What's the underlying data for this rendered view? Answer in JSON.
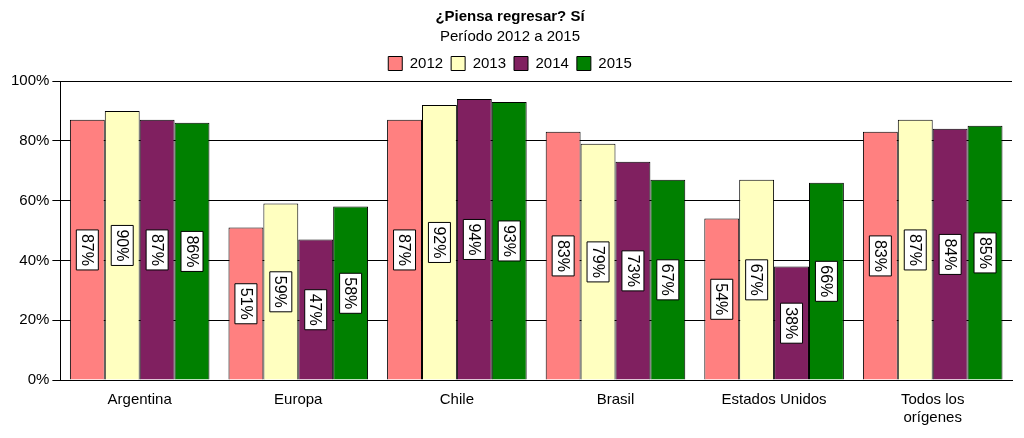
{
  "chart_data": {
    "type": "bar",
    "title": "¿Piensa regresar? Sí",
    "subtitle": "Período 2012 a 2015",
    "categories": [
      "Argentina",
      "Europa",
      "Chile",
      "Brasil",
      "Estados Unidos",
      "Todos los orígenes"
    ],
    "series": [
      {
        "name": "2012",
        "color": "#ff8080",
        "values": [
          87,
          51,
          87,
          83,
          54,
          83
        ],
        "value_labels": [
          "87%",
          "51%",
          "87%",
          "83%",
          "54%",
          "83%"
        ]
      },
      {
        "name": "2013",
        "color": "#ffffc0",
        "values": [
          90,
          59,
          92,
          79,
          67,
          87
        ],
        "value_labels": [
          "90%",
          "59%",
          "92%",
          "79%",
          "67%",
          "87%"
        ]
      },
      {
        "name": "2014",
        "color": "#802060",
        "values": [
          87,
          47,
          94,
          73,
          38,
          84
        ],
        "value_labels": [
          "87%",
          "47%",
          "94%",
          "73%",
          "38%",
          "84%"
        ]
      },
      {
        "name": "2015",
        "color": "#008000",
        "values": [
          86,
          58,
          93,
          67,
          66,
          85
        ],
        "value_labels": [
          "86%",
          "58%",
          "93%",
          "67%",
          "66%",
          "85%"
        ]
      }
    ],
    "ylim": [
      0,
      100
    ],
    "yticks": [
      {
        "value": 0,
        "label": "0%"
      },
      {
        "value": 20,
        "label": "20%"
      },
      {
        "value": 40,
        "label": "40%"
      },
      {
        "value": 60,
        "label": "60%"
      },
      {
        "value": 80,
        "label": "80%"
      },
      {
        "value": 100,
        "label": "100%"
      }
    ],
    "grid": "y",
    "legend": "top"
  }
}
